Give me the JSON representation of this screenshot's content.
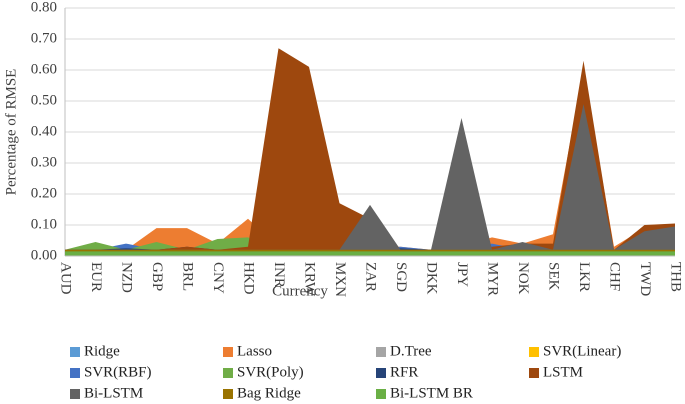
{
  "chart_data": {
    "type": "area",
    "x_label": "Currency",
    "y_label": "Percentage of RMSE",
    "categories": [
      "AUD",
      "EUR",
      "NZD",
      "GBP",
      "BRL",
      "CNY",
      "HKD",
      "INR",
      "KRW",
      "MXN",
      "ZAR",
      "SGD",
      "DKK",
      "JPY",
      "MYR",
      "NOK",
      "SEK",
      "LKR",
      "CHF",
      "TWD",
      "THB"
    ],
    "ylim": [
      0,
      0.8
    ],
    "yticks": [
      {
        "value": 0,
        "label": "0.00"
      },
      {
        "value": 0.1,
        "label": "0.10"
      },
      {
        "value": 0.2,
        "label": "0.20"
      },
      {
        "value": 0.3,
        "label": "0.30"
      },
      {
        "value": 0.4,
        "label": "0.40"
      },
      {
        "value": 0.5,
        "label": "0.50"
      },
      {
        "value": 0.6,
        "label": "0.60"
      },
      {
        "value": 0.7,
        "label": "0.70"
      },
      {
        "value": 0.8,
        "label": "0.80"
      }
    ],
    "grid": true,
    "series": [
      {
        "name": "Ridge",
        "color": "#5b9bd5",
        "values": [
          0.02,
          0.02,
          0.02,
          0.02,
          0.02,
          0.02,
          0.02,
          0.02,
          0.02,
          0.02,
          0.02,
          0.02,
          0.02,
          0.02,
          0.02,
          0.02,
          0.02,
          0.02,
          0.02,
          0.02,
          0.02
        ]
      },
      {
        "name": "Lasso",
        "color": "#ed7d31",
        "values": [
          0.02,
          0.03,
          0.02,
          0.09,
          0.09,
          0.04,
          0.12,
          0.03,
          0.03,
          0.03,
          0.03,
          0.03,
          0.02,
          0.03,
          0.06,
          0.04,
          0.07,
          0.6,
          0.03,
          0.09,
          0.1
        ]
      },
      {
        "name": "D.Tree",
        "color": "#a5a5a5",
        "values": [
          0.02,
          0.02,
          0.02,
          0.02,
          0.02,
          0.02,
          0.02,
          0.02,
          0.02,
          0.02,
          0.02,
          0.02,
          0.02,
          0.02,
          0.02,
          0.02,
          0.02,
          0.02,
          0.02,
          0.02,
          0.02
        ]
      },
      {
        "name": "SVR(Linear)",
        "color": "#ffc000",
        "values": [
          0.02,
          0.02,
          0.02,
          0.02,
          0.02,
          0.02,
          0.02,
          0.02,
          0.02,
          0.02,
          0.02,
          0.02,
          0.02,
          0.02,
          0.02,
          0.02,
          0.02,
          0.02,
          0.02,
          0.02,
          0.02
        ]
      },
      {
        "name": "SVR(RBF)",
        "color": "#4472c4",
        "values": [
          0.02,
          0.02,
          0.04,
          0.02,
          0.02,
          0.02,
          0.04,
          0.02,
          0.02,
          0.02,
          0.02,
          0.03,
          0.02,
          0.02,
          0.04,
          0.02,
          0.02,
          0.02,
          0.02,
          0.02,
          0.02
        ]
      },
      {
        "name": "SVR(Poly)",
        "color": "#70ad47",
        "values": [
          0.02,
          0.045,
          0.02,
          0.045,
          0.02,
          0.055,
          0.06,
          0.02,
          0.02,
          0.02,
          0.02,
          0.02,
          0.02,
          0.02,
          0.02,
          0.02,
          0.02,
          0.02,
          0.02,
          0.02,
          0.02
        ]
      },
      {
        "name": "RFR",
        "color": "#264478",
        "values": [
          0.02,
          0.02,
          0.025,
          0.02,
          0.03,
          0.02,
          0.025,
          0.02,
          0.02,
          0.02,
          0.02,
          0.025,
          0.02,
          0.02,
          0.02,
          0.025,
          0.02,
          0.02,
          0.02,
          0.02,
          0.02
        ]
      },
      {
        "name": "LSTM",
        "color": "#9e480e",
        "values": [
          0.02,
          0.02,
          0.02,
          0.02,
          0.03,
          0.02,
          0.03,
          0.67,
          0.61,
          0.17,
          0.12,
          0.02,
          0.02,
          0.03,
          0.03,
          0.04,
          0.04,
          0.63,
          0.02,
          0.1,
          0.105
        ]
      },
      {
        "name": "Bi-LSTM",
        "color": "#636363",
        "values": [
          0.02,
          0.02,
          0.02,
          0.02,
          0.02,
          0.02,
          0.02,
          0.02,
          0.02,
          0.02,
          0.165,
          0.02,
          0.02,
          0.445,
          0.02,
          0.045,
          0.02,
          0.49,
          0.02,
          0.08,
          0.095
        ]
      },
      {
        "name": "Bag Ridge",
        "color": "#997300",
        "values": [
          0.02,
          0.02,
          0.02,
          0.02,
          0.02,
          0.02,
          0.02,
          0.02,
          0.02,
          0.02,
          0.02,
          0.02,
          0.02,
          0.02,
          0.02,
          0.02,
          0.02,
          0.02,
          0.02,
          0.02,
          0.02
        ]
      },
      {
        "name": "Bi-LSTM BR",
        "color": "#6aaf45",
        "values": [
          0.015,
          0.015,
          0.015,
          0.015,
          0.015,
          0.015,
          0.015,
          0.015,
          0.015,
          0.015,
          0.015,
          0.015,
          0.015,
          0.015,
          0.015,
          0.015,
          0.015,
          0.015,
          0.015,
          0.015,
          0.015
        ]
      }
    ]
  }
}
